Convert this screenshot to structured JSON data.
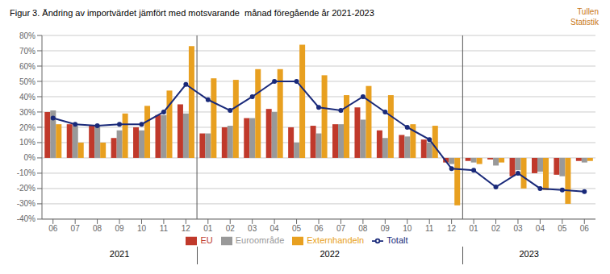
{
  "chart_data": {
    "type": "bar",
    "title": "Figur 3. Ändring av importvärdet jämfört med motsvarande  månad föregående år 2021-2023",
    "categories": [
      "06",
      "07",
      "08",
      "09",
      "10",
      "11",
      "12",
      "01",
      "02",
      "03",
      "04",
      "05",
      "06",
      "07",
      "08",
      "09",
      "10",
      "11",
      "12",
      "01",
      "02",
      "03",
      "04",
      "05",
      "06"
    ],
    "series": [
      {
        "name": "EU",
        "type": "bar",
        "color": "#c0392b",
        "values": [
          30,
          22,
          21,
          13,
          20,
          28,
          35,
          16,
          20,
          26,
          32,
          20,
          21,
          22,
          33,
          18,
          15,
          12,
          -3,
          -2,
          -1,
          -12,
          -10,
          -11,
          -2
        ]
      },
      {
        "name": "Euroområde",
        "type": "bar",
        "color": "#999999",
        "values": [
          31,
          21,
          21,
          18,
          18,
          28,
          29,
          16,
          21,
          26,
          30,
          10,
          16,
          22,
          25,
          13,
          14,
          10,
          -4,
          -3,
          -5,
          -8,
          -9,
          -12,
          -3
        ]
      },
      {
        "name": "Externhandeln",
        "type": "bar",
        "color": "#e8a020",
        "values": [
          22,
          10,
          10,
          29,
          34,
          44,
          73,
          52,
          51,
          58,
          58,
          74,
          54,
          41,
          47,
          41,
          22,
          21,
          -31,
          -4,
          -3,
          -20,
          -21,
          -30,
          -2
        ]
      },
      {
        "name": "Totalt",
        "type": "line",
        "color": "#1a2a7a",
        "marker": "circle",
        "values": [
          26,
          22,
          21,
          22,
          22,
          30,
          48,
          38,
          31,
          40,
          50,
          50,
          33,
          31,
          40,
          30,
          20,
          12,
          -7,
          -8,
          -19,
          -10,
          -20,
          -21,
          -22
        ]
      }
    ],
    "ylim": [
      -40,
      80
    ],
    "yticks": [
      {
        "value": -40,
        "label": "-40%"
      },
      {
        "value": -30,
        "label": "-30%"
      },
      {
        "value": -20,
        "label": "-20%"
      },
      {
        "value": -10,
        "label": "-10%"
      },
      {
        "value": 0,
        "label": "0%"
      },
      {
        "value": 10,
        "label": "10%"
      },
      {
        "value": 20,
        "label": "20%"
      },
      {
        "value": 30,
        "label": "30%"
      },
      {
        "value": 40,
        "label": "40%"
      },
      {
        "value": 50,
        "label": "50%"
      },
      {
        "value": 60,
        "label": "60%"
      },
      {
        "value": 70,
        "label": "70%"
      },
      {
        "value": 80,
        "label": "80%"
      }
    ],
    "grid": true,
    "legend": "bottom",
    "year_groups": [
      {
        "label": "2021",
        "start": 0,
        "end": 6
      },
      {
        "label": "2022",
        "start": 7,
        "end": 18
      },
      {
        "label": "2023",
        "start": 19,
        "end": 24
      }
    ],
    "annotations": [
      {
        "text": "Tullen",
        "color": "#c87820"
      },
      {
        "text": "Statistik",
        "color": "#c87820"
      }
    ]
  }
}
